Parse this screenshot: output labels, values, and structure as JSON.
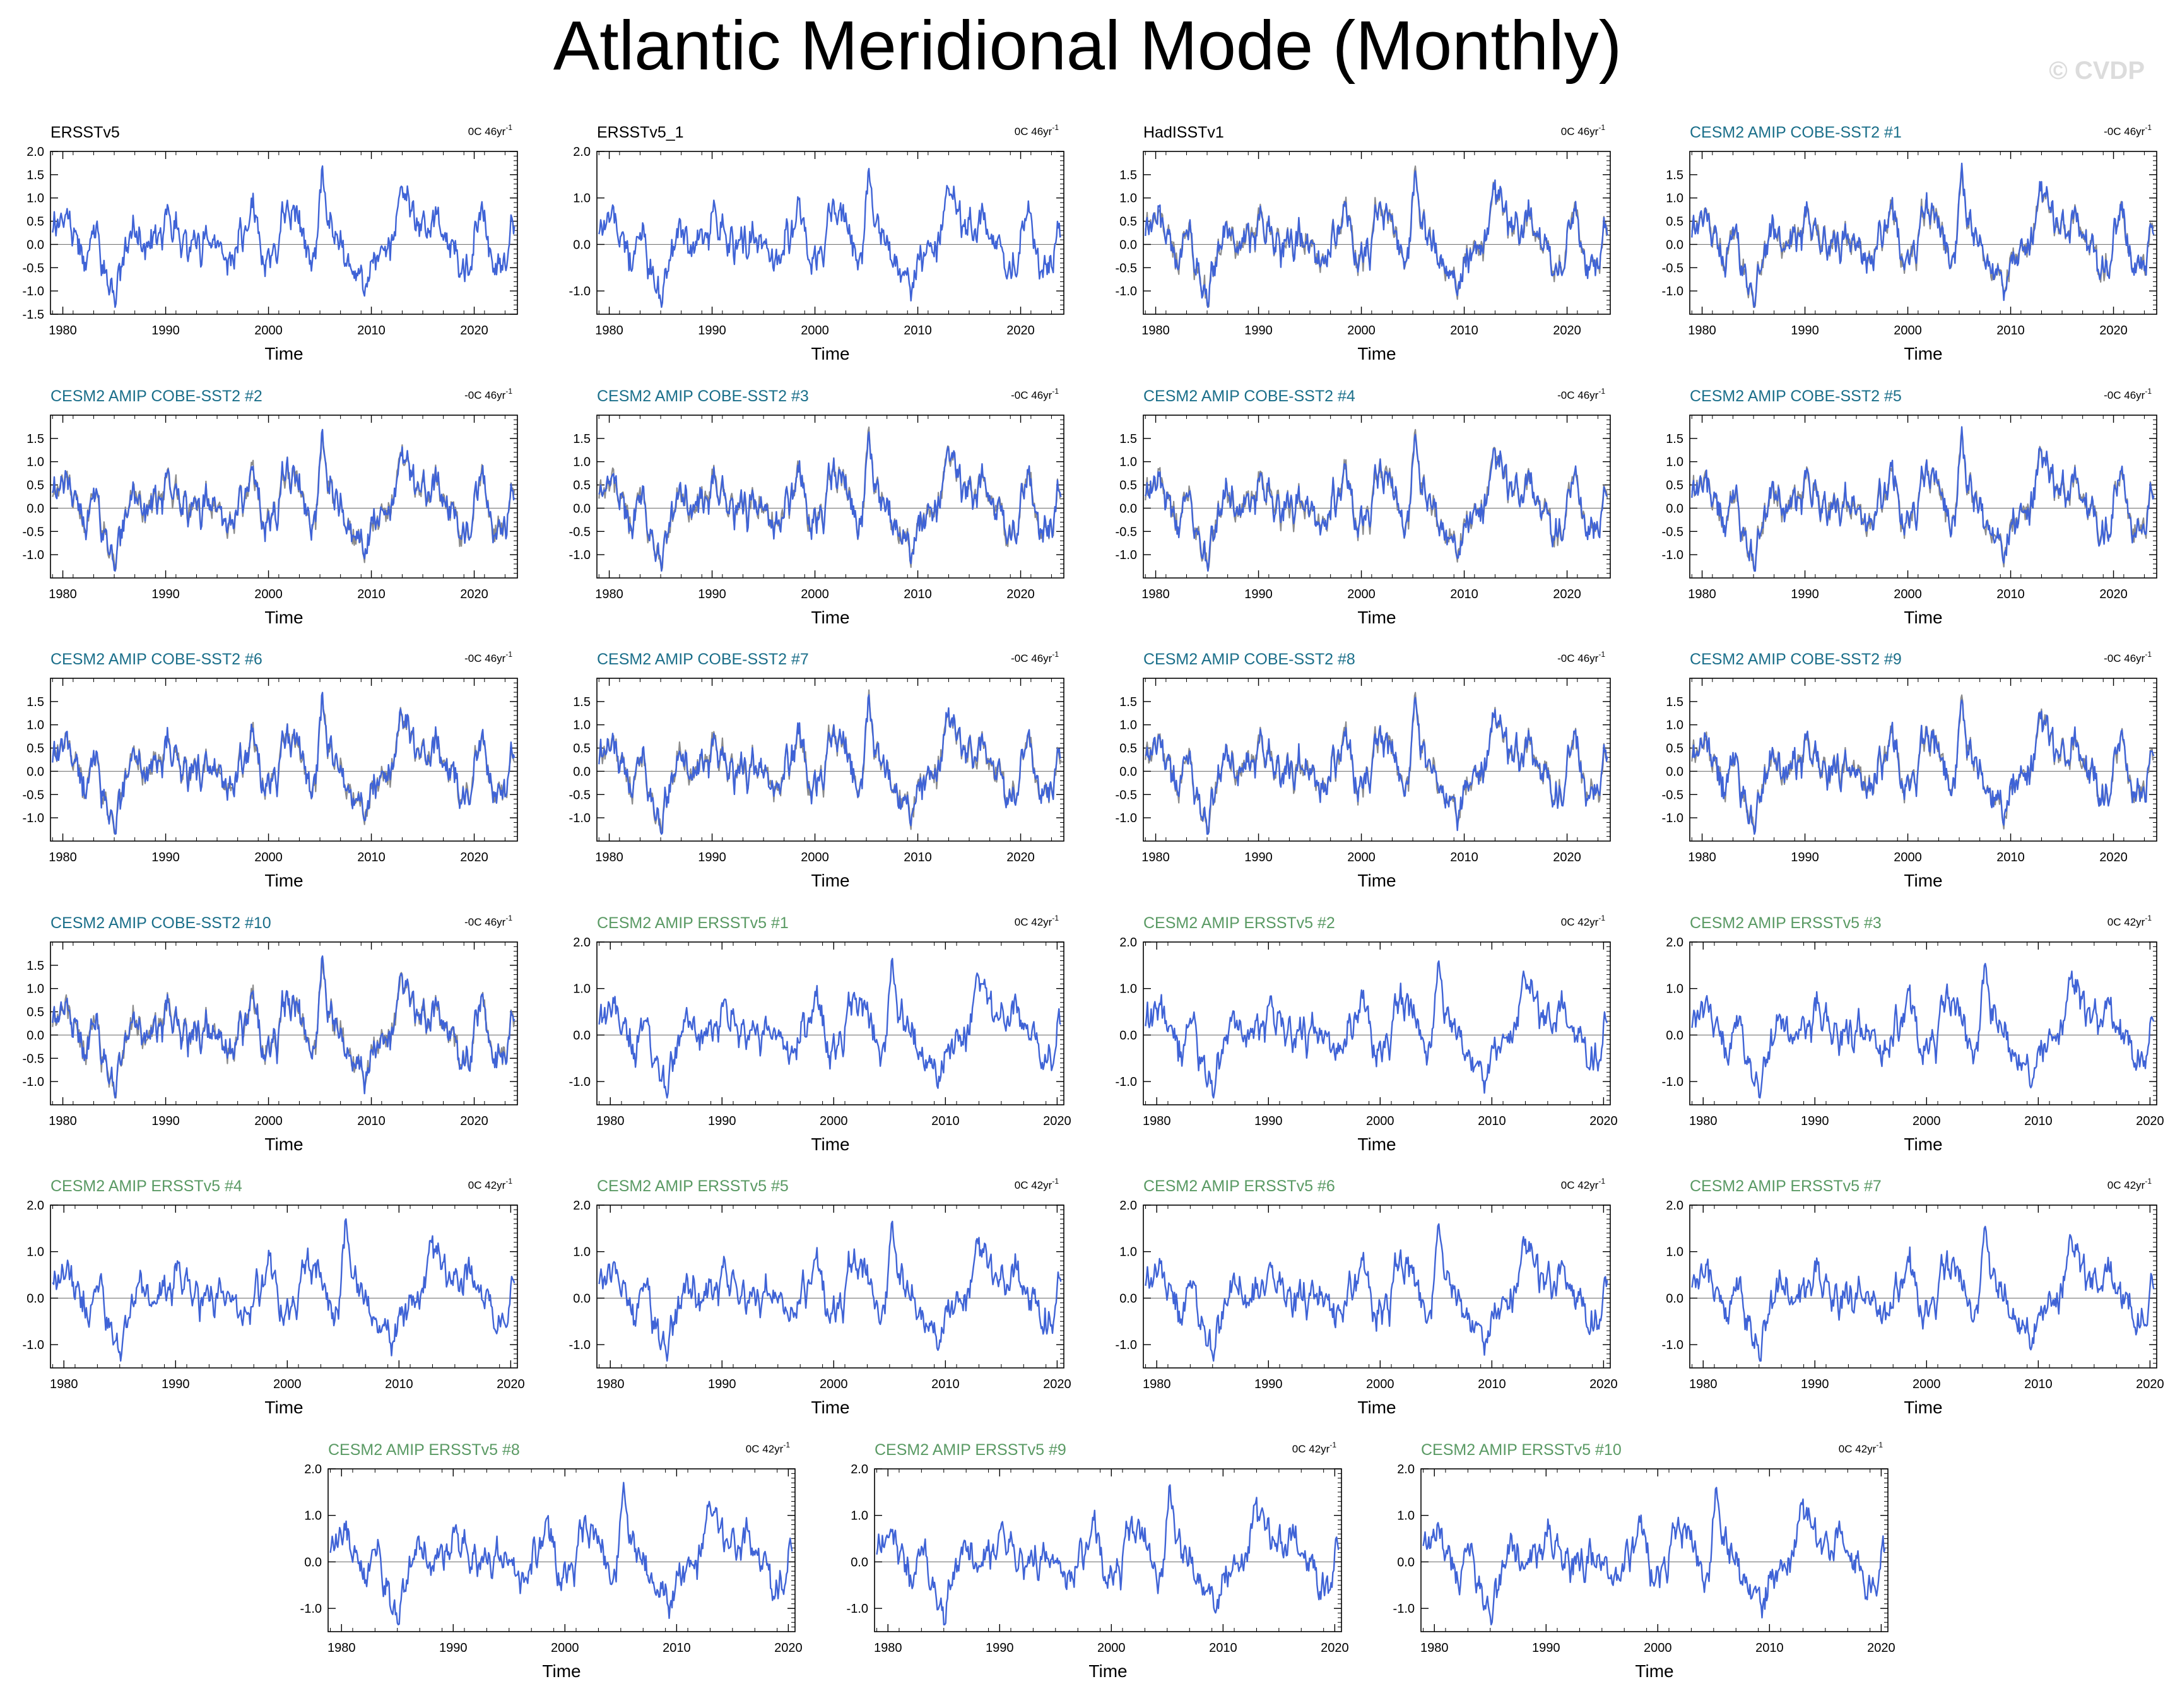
{
  "title": "Atlantic Meridional Mode (Monthly)",
  "watermark": "© CVDP",
  "colors": {
    "series": "#3f63d6",
    "reference": "#8c8c8c",
    "obs_title": "#000000",
    "cobe_title": "#1b6f8a",
    "ersst_title": "#5a9a64"
  },
  "chart_data": [
    {
      "type": "line",
      "title": "ERSSTv5",
      "trend": "0C 46yr",
      "xlabel": "Time",
      "xlim": [
        1978.8,
        2024.2
      ],
      "ylim": [
        -1.5,
        2.0
      ],
      "yticks": [
        "2.0",
        "1.5",
        "1.0",
        "0.5",
        "0.0",
        "-0.5",
        "-1.0",
        "-1.5"
      ],
      "ytick_values": [
        2.0,
        1.5,
        1.0,
        0.5,
        0.0,
        -0.5,
        -1.0,
        -1.5
      ],
      "xticks": [
        "1980",
        "1990",
        "2000",
        "2010",
        "2020"
      ],
      "xtick_values": [
        1980,
        1990,
        2000,
        2010,
        2020
      ],
      "series_count": 1,
      "group": "obs",
      "seed": 1
    },
    {
      "type": "line",
      "title": "ERSSTv5_1",
      "trend": "0C 46yr",
      "xlabel": "Time",
      "xlim": [
        1978.8,
        2024.2
      ],
      "ylim": [
        -1.5,
        2.0
      ],
      "yticks": [
        "2.0",
        "1.0",
        "0.0",
        "-1.0"
      ],
      "ytick_values": [
        2.0,
        1.0,
        0.0,
        -1.0
      ],
      "xticks": [
        "1980",
        "1990",
        "2000",
        "2010",
        "2020"
      ],
      "xtick_values": [
        1980,
        1990,
        2000,
        2010,
        2020
      ],
      "series_count": 1,
      "group": "obs",
      "seed": 2
    },
    {
      "type": "line",
      "title": "HadISSTv1",
      "trend": "0C 46yr",
      "xlabel": "Time",
      "xlim": [
        1978.8,
        2024.2
      ],
      "ylim": [
        -1.5,
        2.0
      ],
      "yticks": [
        "1.5",
        "1.0",
        "0.5",
        "0.0",
        "-0.5",
        "-1.0"
      ],
      "ytick_values": [
        1.5,
        1.0,
        0.5,
        0.0,
        -0.5,
        -1.0
      ],
      "xticks": [
        "1980",
        "1990",
        "2000",
        "2010",
        "2020"
      ],
      "xtick_values": [
        1980,
        1990,
        2000,
        2010,
        2020
      ],
      "series_count": 2,
      "group": "obs",
      "seed": 3
    },
    {
      "type": "line",
      "title": "CESM2 AMIP COBE-SST2 #1",
      "trend": "-0C 46yr",
      "xlabel": "Time",
      "xlim": [
        1978.8,
        2024.2
      ],
      "ylim": [
        -1.5,
        2.0
      ],
      "yticks": [
        "1.5",
        "1.0",
        "0.5",
        "0.0",
        "-0.5",
        "-1.0"
      ],
      "ytick_values": [
        1.5,
        1.0,
        0.5,
        0.0,
        -0.5,
        -1.0
      ],
      "xticks": [
        "1980",
        "1990",
        "2000",
        "2010",
        "2020"
      ],
      "xtick_values": [
        1980,
        1990,
        2000,
        2010,
        2020
      ],
      "series_count": 2,
      "group": "cobe",
      "seed": 4
    },
    {
      "type": "line",
      "title": "CESM2 AMIP COBE-SST2 #2",
      "trend": "-0C 46yr",
      "xlabel": "Time",
      "xlim": [
        1978.8,
        2024.2
      ],
      "ylim": [
        -1.5,
        2.0
      ],
      "yticks": [
        "1.5",
        "1.0",
        "0.5",
        "0.0",
        "-0.5",
        "-1.0"
      ],
      "ytick_values": [
        1.5,
        1.0,
        0.5,
        0.0,
        -0.5,
        -1.0
      ],
      "xticks": [
        "1980",
        "1990",
        "2000",
        "2010",
        "2020"
      ],
      "xtick_values": [
        1980,
        1990,
        2000,
        2010,
        2020
      ],
      "series_count": 2,
      "group": "cobe",
      "seed": 5
    },
    {
      "type": "line",
      "title": "CESM2 AMIP COBE-SST2 #3",
      "trend": "-0C 46yr",
      "xlabel": "Time",
      "xlim": [
        1978.8,
        2024.2
      ],
      "ylim": [
        -1.5,
        2.0
      ],
      "yticks": [
        "1.5",
        "1.0",
        "0.5",
        "0.0",
        "-0.5",
        "-1.0"
      ],
      "ytick_values": [
        1.5,
        1.0,
        0.5,
        0.0,
        -0.5,
        -1.0
      ],
      "xticks": [
        "1980",
        "1990",
        "2000",
        "2010",
        "2020"
      ],
      "xtick_values": [
        1980,
        1990,
        2000,
        2010,
        2020
      ],
      "series_count": 2,
      "group": "cobe",
      "seed": 6
    },
    {
      "type": "line",
      "title": "CESM2 AMIP COBE-SST2 #4",
      "trend": "-0C 46yr",
      "xlabel": "Time",
      "xlim": [
        1978.8,
        2024.2
      ],
      "ylim": [
        -1.5,
        2.0
      ],
      "yticks": [
        "1.5",
        "1.0",
        "0.5",
        "0.0",
        "-0.5",
        "-1.0"
      ],
      "ytick_values": [
        1.5,
        1.0,
        0.5,
        0.0,
        -0.5,
        -1.0
      ],
      "xticks": [
        "1980",
        "1990",
        "2000",
        "2010",
        "2020"
      ],
      "xtick_values": [
        1980,
        1990,
        2000,
        2010,
        2020
      ],
      "series_count": 2,
      "group": "cobe",
      "seed": 7
    },
    {
      "type": "line",
      "title": "CESM2 AMIP COBE-SST2 #5",
      "trend": "-0C 46yr",
      "xlabel": "Time",
      "xlim": [
        1978.8,
        2024.2
      ],
      "ylim": [
        -1.5,
        2.0
      ],
      "yticks": [
        "1.5",
        "1.0",
        "0.5",
        "0.0",
        "-0.5",
        "-1.0"
      ],
      "ytick_values": [
        1.5,
        1.0,
        0.5,
        0.0,
        -0.5,
        -1.0
      ],
      "xticks": [
        "1980",
        "1990",
        "2000",
        "2010",
        "2020"
      ],
      "xtick_values": [
        1980,
        1990,
        2000,
        2010,
        2020
      ],
      "series_count": 2,
      "group": "cobe",
      "seed": 8
    },
    {
      "type": "line",
      "title": "CESM2 AMIP COBE-SST2 #6",
      "trend": "-0C 46yr",
      "xlabel": "Time",
      "xlim": [
        1978.8,
        2024.2
      ],
      "ylim": [
        -1.5,
        2.0
      ],
      "yticks": [
        "1.5",
        "1.0",
        "0.5",
        "0.0",
        "-0.5",
        "-1.0"
      ],
      "ytick_values": [
        1.5,
        1.0,
        0.5,
        0.0,
        -0.5,
        -1.0
      ],
      "xticks": [
        "1980",
        "1990",
        "2000",
        "2010",
        "2020"
      ],
      "xtick_values": [
        1980,
        1990,
        2000,
        2010,
        2020
      ],
      "series_count": 2,
      "group": "cobe",
      "seed": 9
    },
    {
      "type": "line",
      "title": "CESM2 AMIP COBE-SST2 #7",
      "trend": "-0C 46yr",
      "xlabel": "Time",
      "xlim": [
        1978.8,
        2024.2
      ],
      "ylim": [
        -1.5,
        2.0
      ],
      "yticks": [
        "1.5",
        "1.0",
        "0.5",
        "0.0",
        "-0.5",
        "-1.0"
      ],
      "ytick_values": [
        1.5,
        1.0,
        0.5,
        0.0,
        -0.5,
        -1.0
      ],
      "xticks": [
        "1980",
        "1990",
        "2000",
        "2010",
        "2020"
      ],
      "xtick_values": [
        1980,
        1990,
        2000,
        2010,
        2020
      ],
      "series_count": 2,
      "group": "cobe",
      "seed": 10
    },
    {
      "type": "line",
      "title": "CESM2 AMIP COBE-SST2 #8",
      "trend": "-0C 46yr",
      "xlabel": "Time",
      "xlim": [
        1978.8,
        2024.2
      ],
      "ylim": [
        -1.5,
        2.0
      ],
      "yticks": [
        "1.5",
        "1.0",
        "0.5",
        "0.0",
        "-0.5",
        "-1.0"
      ],
      "ytick_values": [
        1.5,
        1.0,
        0.5,
        0.0,
        -0.5,
        -1.0
      ],
      "xticks": [
        "1980",
        "1990",
        "2000",
        "2010",
        "2020"
      ],
      "xtick_values": [
        1980,
        1990,
        2000,
        2010,
        2020
      ],
      "series_count": 2,
      "group": "cobe",
      "seed": 11
    },
    {
      "type": "line",
      "title": "CESM2 AMIP COBE-SST2 #9",
      "trend": "-0C 46yr",
      "xlabel": "Time",
      "xlim": [
        1978.8,
        2024.2
      ],
      "ylim": [
        -1.5,
        2.0
      ],
      "yticks": [
        "1.5",
        "1.0",
        "0.5",
        "0.0",
        "-0.5",
        "-1.0"
      ],
      "ytick_values": [
        1.5,
        1.0,
        0.5,
        0.0,
        -0.5,
        -1.0
      ],
      "xticks": [
        "1980",
        "1990",
        "2000",
        "2010",
        "2020"
      ],
      "xtick_values": [
        1980,
        1990,
        2000,
        2010,
        2020
      ],
      "series_count": 2,
      "group": "cobe",
      "seed": 12
    },
    {
      "type": "line",
      "title": "CESM2 AMIP COBE-SST2 #10",
      "trend": "-0C 46yr",
      "xlabel": "Time",
      "xlim": [
        1978.8,
        2024.2
      ],
      "ylim": [
        -1.5,
        2.0
      ],
      "yticks": [
        "1.5",
        "1.0",
        "0.5",
        "0.0",
        "-0.5",
        "-1.0"
      ],
      "ytick_values": [
        1.5,
        1.0,
        0.5,
        0.0,
        -0.5,
        -1.0
      ],
      "xticks": [
        "1980",
        "1990",
        "2000",
        "2010",
        "2020"
      ],
      "xtick_values": [
        1980,
        1990,
        2000,
        2010,
        2020
      ],
      "series_count": 2,
      "group": "cobe",
      "seed": 13
    },
    {
      "type": "line",
      "title": "CESM2 AMIP ERSSTv5 #1",
      "trend": "0C 42yr",
      "xlabel": "Time",
      "xlim": [
        1978.8,
        2020.6
      ],
      "ylim": [
        -1.5,
        2.0
      ],
      "yticks": [
        "2.0",
        "1.0",
        "0.0",
        "-1.0"
      ],
      "ytick_values": [
        2.0,
        1.0,
        0.0,
        -1.0
      ],
      "xticks": [
        "1980",
        "1990",
        "2000",
        "2010",
        "2020"
      ],
      "xtick_values": [
        1980,
        1990,
        2000,
        2010,
        2020
      ],
      "series_count": 1,
      "group": "ersst",
      "seed": 14
    },
    {
      "type": "line",
      "title": "CESM2 AMIP ERSSTv5 #2",
      "trend": "0C 42yr",
      "xlabel": "Time",
      "xlim": [
        1978.8,
        2020.6
      ],
      "ylim": [
        -1.5,
        2.0
      ],
      "yticks": [
        "2.0",
        "1.0",
        "0.0",
        "-1.0"
      ],
      "ytick_values": [
        2.0,
        1.0,
        0.0,
        -1.0
      ],
      "xticks": [
        "1980",
        "1990",
        "2000",
        "2010",
        "2020"
      ],
      "xtick_values": [
        1980,
        1990,
        2000,
        2010,
        2020
      ],
      "series_count": 1,
      "group": "ersst",
      "seed": 15
    },
    {
      "type": "line",
      "title": "CESM2 AMIP ERSSTv5 #3",
      "trend": "0C 42yr",
      "xlabel": "Time",
      "xlim": [
        1978.8,
        2020.6
      ],
      "ylim": [
        -1.5,
        2.0
      ],
      "yticks": [
        "2.0",
        "1.0",
        "0.0",
        "-1.0"
      ],
      "ytick_values": [
        2.0,
        1.0,
        0.0,
        -1.0
      ],
      "xticks": [
        "1980",
        "1990",
        "2000",
        "2010",
        "2020"
      ],
      "xtick_values": [
        1980,
        1990,
        2000,
        2010,
        2020
      ],
      "series_count": 1,
      "group": "ersst",
      "seed": 16
    },
    {
      "type": "line",
      "title": "CESM2 AMIP ERSSTv5 #4",
      "trend": "0C 42yr",
      "xlabel": "Time",
      "xlim": [
        1978.8,
        2020.6
      ],
      "ylim": [
        -1.5,
        2.0
      ],
      "yticks": [
        "2.0",
        "1.0",
        "0.0",
        "-1.0"
      ],
      "ytick_values": [
        2.0,
        1.0,
        0.0,
        -1.0
      ],
      "xticks": [
        "1980",
        "1990",
        "2000",
        "2010",
        "2020"
      ],
      "xtick_values": [
        1980,
        1990,
        2000,
        2010,
        2020
      ],
      "series_count": 1,
      "group": "ersst",
      "seed": 17
    },
    {
      "type": "line",
      "title": "CESM2 AMIP ERSSTv5 #5",
      "trend": "0C 42yr",
      "xlabel": "Time",
      "xlim": [
        1978.8,
        2020.6
      ],
      "ylim": [
        -1.5,
        2.0
      ],
      "yticks": [
        "2.0",
        "1.0",
        "0.0",
        "-1.0"
      ],
      "ytick_values": [
        2.0,
        1.0,
        0.0,
        -1.0
      ],
      "xticks": [
        "1980",
        "1990",
        "2000",
        "2010",
        "2020"
      ],
      "xtick_values": [
        1980,
        1990,
        2000,
        2010,
        2020
      ],
      "series_count": 1,
      "group": "ersst",
      "seed": 18
    },
    {
      "type": "line",
      "title": "CESM2 AMIP ERSSTv5 #6",
      "trend": "0C 42yr",
      "xlabel": "Time",
      "xlim": [
        1978.8,
        2020.6
      ],
      "ylim": [
        -1.5,
        2.0
      ],
      "yticks": [
        "2.0",
        "1.0",
        "0.0",
        "-1.0"
      ],
      "ytick_values": [
        2.0,
        1.0,
        0.0,
        -1.0
      ],
      "xticks": [
        "1980",
        "1990",
        "2000",
        "2010",
        "2020"
      ],
      "xtick_values": [
        1980,
        1990,
        2000,
        2010,
        2020
      ],
      "series_count": 1,
      "group": "ersst",
      "seed": 19
    },
    {
      "type": "line",
      "title": "CESM2 AMIP ERSSTv5 #7",
      "trend": "0C 42yr",
      "xlabel": "Time",
      "xlim": [
        1978.8,
        2020.6
      ],
      "ylim": [
        -1.5,
        2.0
      ],
      "yticks": [
        "2.0",
        "1.0",
        "0.0",
        "-1.0"
      ],
      "ytick_values": [
        2.0,
        1.0,
        0.0,
        -1.0
      ],
      "xticks": [
        "1980",
        "1990",
        "2000",
        "2010",
        "2020"
      ],
      "xtick_values": [
        1980,
        1990,
        2000,
        2010,
        2020
      ],
      "series_count": 1,
      "group": "ersst",
      "seed": 20
    },
    {
      "type": "line",
      "title": "CESM2 AMIP ERSSTv5 #8",
      "trend": "0C 42yr",
      "xlabel": "Time",
      "xlim": [
        1978.8,
        2020.6
      ],
      "ylim": [
        -1.5,
        2.0
      ],
      "yticks": [
        "2.0",
        "1.0",
        "0.0",
        "-1.0"
      ],
      "ytick_values": [
        2.0,
        1.0,
        0.0,
        -1.0
      ],
      "xticks": [
        "1980",
        "1990",
        "2000",
        "2010",
        "2020"
      ],
      "xtick_values": [
        1980,
        1990,
        2000,
        2010,
        2020
      ],
      "series_count": 1,
      "group": "ersst",
      "seed": 21
    },
    {
      "type": "line",
      "title": "CESM2 AMIP ERSSTv5 #9",
      "trend": "0C 42yr",
      "xlabel": "Time",
      "xlim": [
        1978.8,
        2020.6
      ],
      "ylim": [
        -1.5,
        2.0
      ],
      "yticks": [
        "2.0",
        "1.0",
        "0.0",
        "-1.0"
      ],
      "ytick_values": [
        2.0,
        1.0,
        0.0,
        -1.0
      ],
      "xticks": [
        "1980",
        "1990",
        "2000",
        "2010",
        "2020"
      ],
      "xtick_values": [
        1980,
        1990,
        2000,
        2010,
        2020
      ],
      "series_count": 1,
      "group": "ersst",
      "seed": 22
    },
    {
      "type": "line",
      "title": "CESM2 AMIP ERSSTv5 #10",
      "trend": "0C 42yr",
      "xlabel": "Time",
      "xlim": [
        1978.8,
        2020.6
      ],
      "ylim": [
        -1.5,
        2.0
      ],
      "yticks": [
        "2.0",
        "1.0",
        "0.0",
        "-1.0"
      ],
      "ytick_values": [
        2.0,
        1.0,
        0.0,
        -1.0
      ],
      "xticks": [
        "1980",
        "1990",
        "2000",
        "2010",
        "2020"
      ],
      "xtick_values": [
        1980,
        1990,
        2000,
        2010,
        2020
      ],
      "series_count": 1,
      "group": "ersst",
      "seed": 23
    }
  ]
}
